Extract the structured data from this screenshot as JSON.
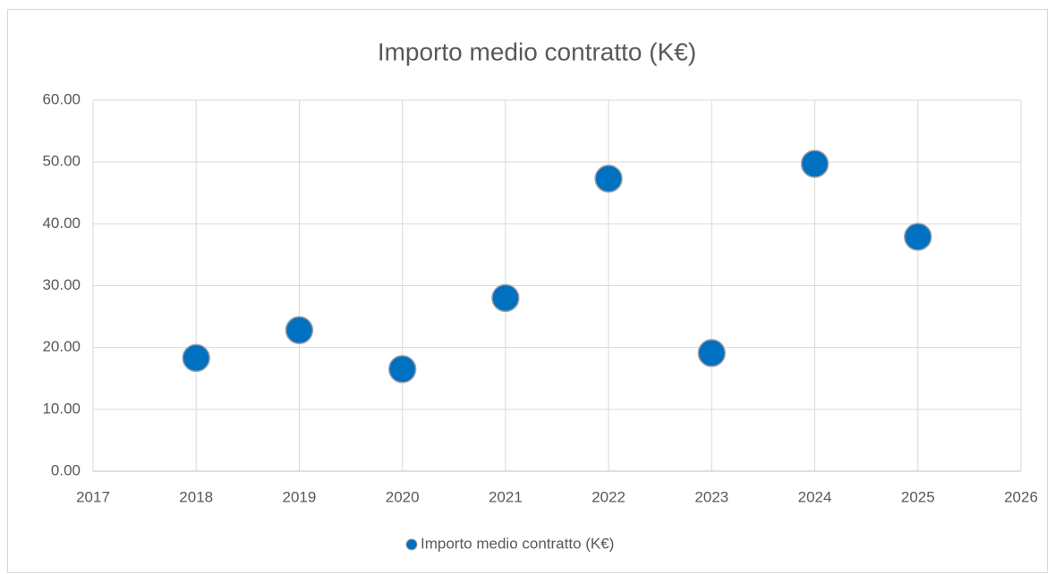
{
  "chart_data": {
    "type": "scatter",
    "title": "Importo medio contratto (K€)",
    "series": [
      {
        "name": "Importo medio contratto (K€)",
        "color": "#0070c0",
        "x": [
          2018,
          2019,
          2020,
          2021,
          2022,
          2023,
          2024,
          2025
        ],
        "values": [
          18.3,
          22.8,
          16.5,
          28.0,
          47.3,
          19.1,
          49.7,
          37.9
        ]
      }
    ],
    "xlim": [
      2017,
      2026
    ],
    "xticks": [
      2017,
      2018,
      2019,
      2020,
      2021,
      2022,
      2023,
      2024,
      2025,
      2026
    ],
    "ylim": [
      0,
      60
    ],
    "yticks": [
      {
        "value": 0,
        "label": "0.00"
      },
      {
        "value": 10,
        "label": "10.00"
      },
      {
        "value": 20,
        "label": "20.00"
      },
      {
        "value": 30,
        "label": "30.00"
      },
      {
        "value": 40,
        "label": "40.00"
      },
      {
        "value": 50,
        "label": "50.00"
      },
      {
        "value": 60,
        "label": "60.00"
      }
    ],
    "grid": true,
    "legend": "bottom"
  }
}
